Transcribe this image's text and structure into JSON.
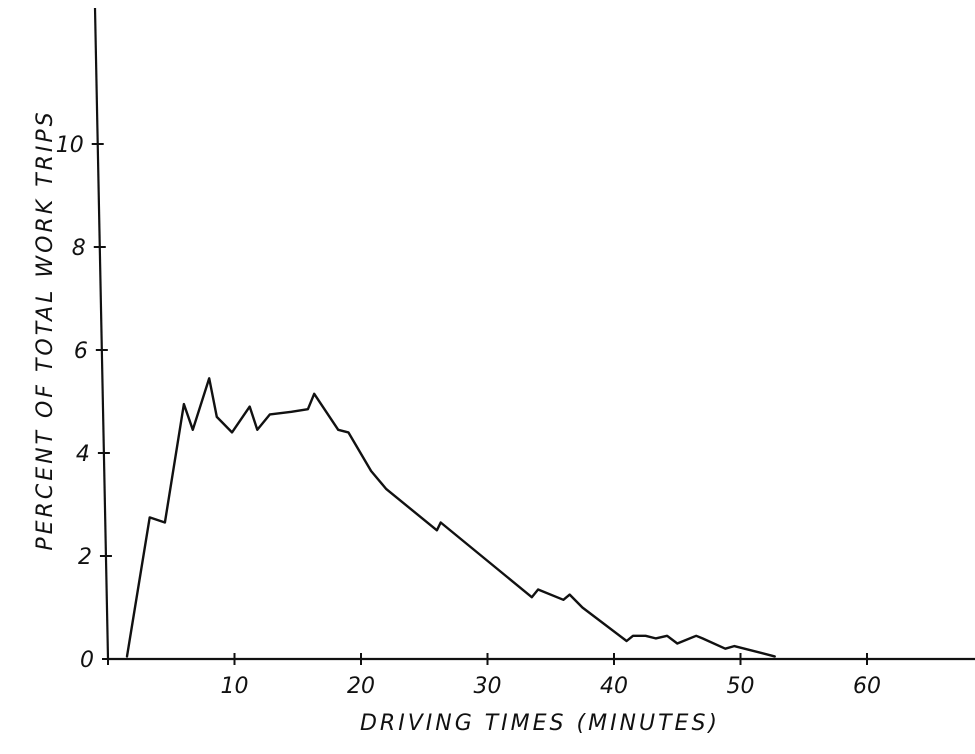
{
  "chart_data": {
    "type": "line",
    "title": "",
    "xlabel": "DRIVING TIMES (MINUTES)",
    "ylabel": "PERCENT OF TOTAL WORK TRIPS",
    "xlim": [
      0,
      70
    ],
    "ylim": [
      0,
      12
    ],
    "x_ticks": [
      0,
      10,
      20,
      30,
      40,
      50,
      60
    ],
    "x_tick_labels": [
      "",
      "10",
      "20",
      "30",
      "40",
      "50",
      "60"
    ],
    "y_ticks": [
      0,
      2,
      4,
      6,
      8,
      10
    ],
    "y_tick_labels": [
      "0",
      "2",
      "4",
      "6",
      "8",
      "10"
    ],
    "grid": false,
    "legend": "none",
    "series": [
      {
        "x": [
          1.5,
          3.3,
          4.5,
          6.0,
          6.7,
          8.0,
          8.6,
          9.8,
          11.2,
          11.8,
          12.8,
          14.5,
          15.8,
          16.3,
          18.2,
          19.0,
          20.8,
          22.0,
          26.0,
          26.3,
          33.5,
          34.0,
          36.0,
          36.5,
          37.5,
          41.0,
          41.5,
          42.5,
          43.3,
          44.2,
          45.0,
          46.5,
          47.0,
          48.8,
          49.5,
          52.7
        ],
        "y": [
          0.05,
          2.75,
          2.65,
          4.95,
          4.45,
          5.45,
          4.7,
          4.4,
          4.9,
          4.45,
          4.75,
          4.8,
          4.85,
          5.15,
          4.45,
          4.4,
          3.65,
          3.3,
          2.5,
          2.65,
          1.2,
          1.35,
          1.15,
          1.25,
          1.0,
          0.35,
          0.45,
          0.45,
          0.4,
          0.45,
          0.3,
          0.45,
          0.4,
          0.2,
          0.25,
          0.05
        ]
      }
    ]
  }
}
